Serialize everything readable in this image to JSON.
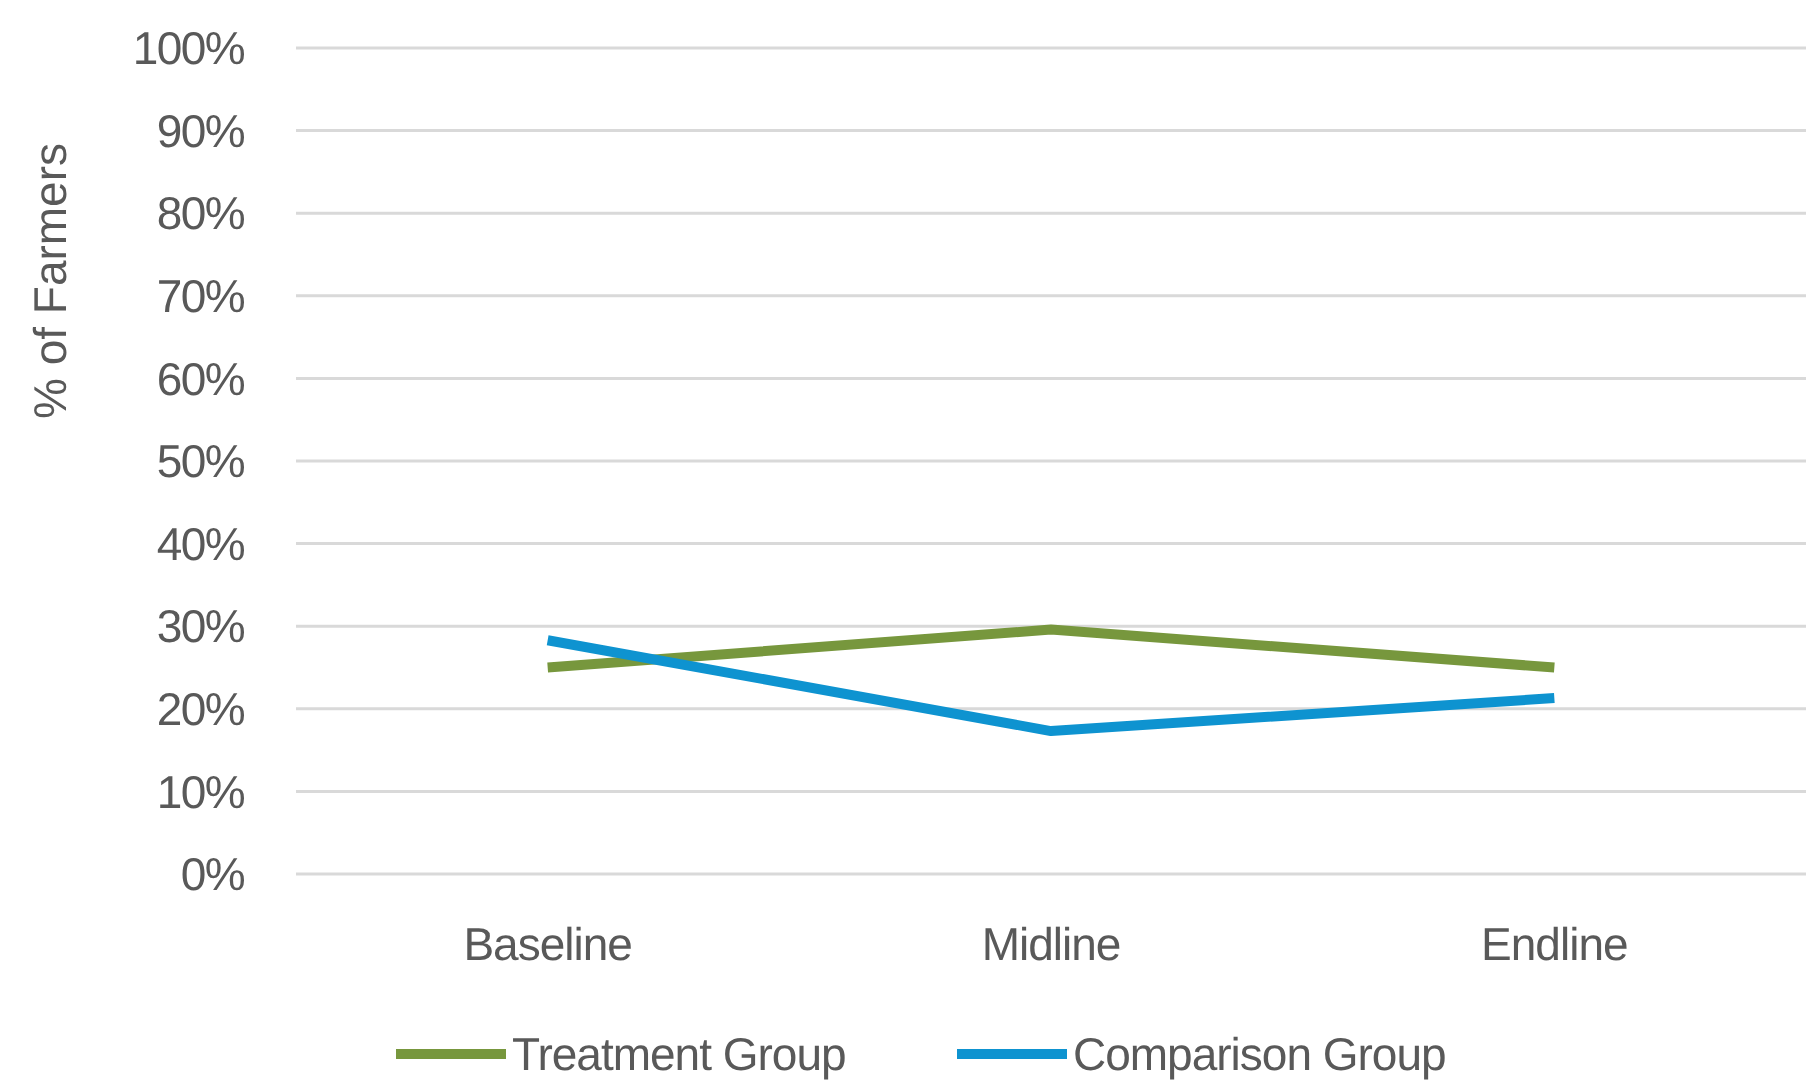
{
  "chart_data": {
    "type": "line",
    "ylabel": "% of Farmers",
    "categories": [
      "Baseline",
      "Midline",
      "Endline"
    ],
    "series": [
      {
        "name": "Treatment Group",
        "color": "#77973d",
        "values": [
          25,
          29.6,
          25
        ]
      },
      {
        "name": "Comparison Group",
        "color": "#0e93d0",
        "values": [
          28.3,
          17.3,
          21.3
        ]
      }
    ],
    "ylim": [
      0,
      100
    ],
    "yticks": [
      {
        "value": 0,
        "label": "0%"
      },
      {
        "value": 10,
        "label": "10%"
      },
      {
        "value": 20,
        "label": "20%"
      },
      {
        "value": 30,
        "label": "30%"
      },
      {
        "value": 40,
        "label": "40%"
      },
      {
        "value": 50,
        "label": "50%"
      },
      {
        "value": 60,
        "label": "60%"
      },
      {
        "value": 70,
        "label": "70%"
      },
      {
        "value": 80,
        "label": "80%"
      },
      {
        "value": 90,
        "label": "90%"
      },
      {
        "value": 100,
        "label": "100%"
      }
    ],
    "grid": "y",
    "legend": "bottom",
    "marker": "none",
    "line_style": "solid"
  }
}
